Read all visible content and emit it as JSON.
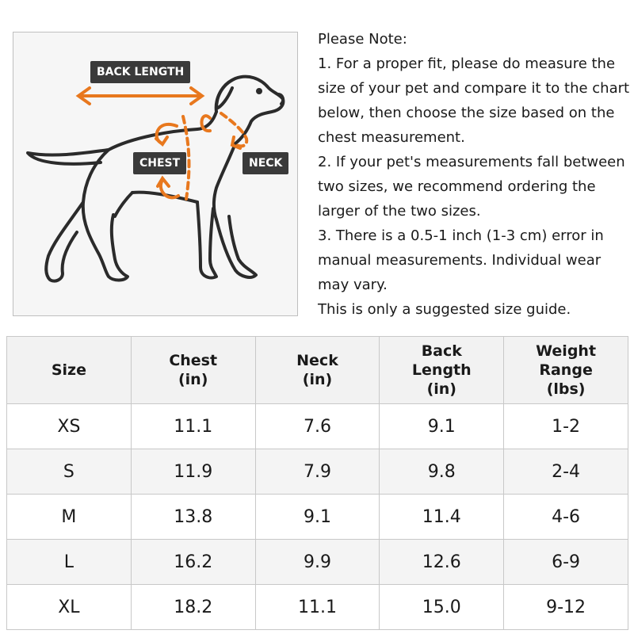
{
  "diagram": {
    "labels": {
      "back_length": "BACK LENGTH",
      "chest": "CHEST",
      "neck": "NECK"
    },
    "accent_color": "#e8781e",
    "label_bg_color": "#3a3a3a",
    "icons": [
      "dog-outline-illustration",
      "measurement-arrow-icon"
    ]
  },
  "notes": {
    "lines": [
      "Please Note:",
      "1. For a proper fit, please do measure the",
      "size of your pet and compare it to the chart",
      "below, then choose the size based on the",
      "chest measurement.",
      "2. If your pet's measurements fall between",
      "two sizes, we recommend ordering the",
      "larger of the two sizes.",
      "3. There is a 0.5-1 inch (1-3 cm) error in",
      "manual measurements. Individual wear",
      "may vary.",
      "This is only a suggested size guide."
    ]
  },
  "table": {
    "headers": [
      [
        "Size"
      ],
      [
        "Chest",
        "(in)"
      ],
      [
        "Neck",
        "(in)"
      ],
      [
        "Back",
        "Length",
        "(in)"
      ],
      [
        "Weight",
        "Range",
        "(lbs)"
      ]
    ],
    "rows": [
      [
        "XS",
        "11.1",
        "7.6",
        "9.1",
        "1-2"
      ],
      [
        "S",
        "11.9",
        "7.9",
        "9.8",
        "2-4"
      ],
      [
        "M",
        "13.8",
        "9.1",
        "11.4",
        "4-6"
      ],
      [
        "L",
        "16.2",
        "9.9",
        "12.6",
        "6-9"
      ],
      [
        "XL",
        "18.2",
        "11.1",
        "15.0",
        "9-12"
      ]
    ]
  }
}
